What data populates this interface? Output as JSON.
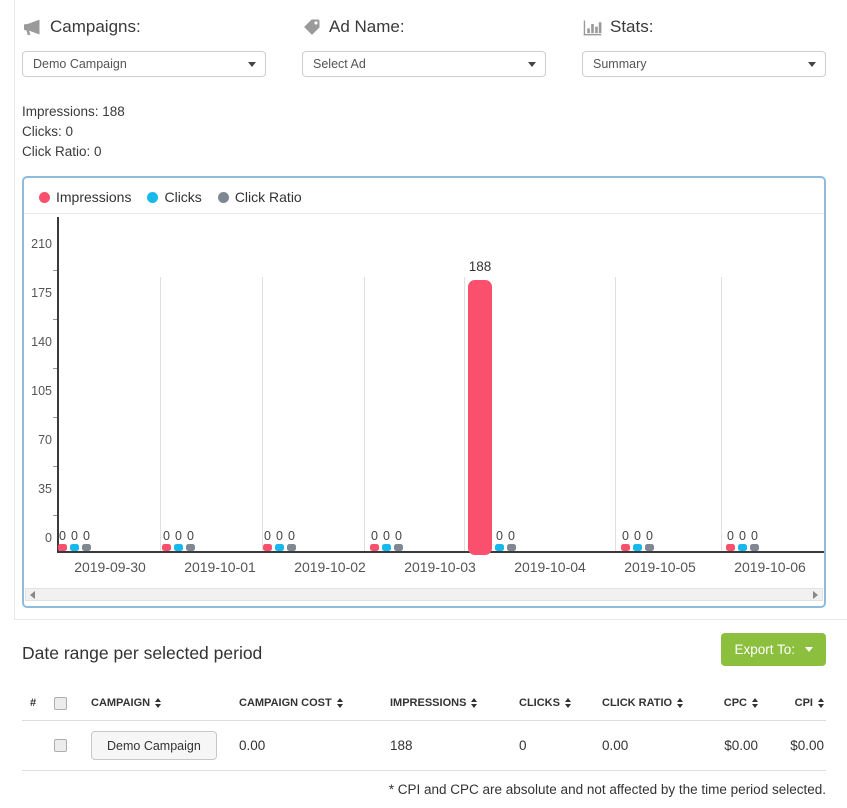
{
  "accent": {
    "panel_border": "#8FBCDE",
    "grid_color": "#E0E0E0",
    "axis_color": "#3A3A3A",
    "export_green": "#8CBF3E"
  },
  "controls": {
    "campaigns": {
      "label": "Campaigns:",
      "value": "Demo Campaign",
      "icon": "megaphone-icon"
    },
    "ad_name": {
      "label": "Ad Name:",
      "value": "Select Ad",
      "icon": "tag-icon"
    },
    "stats": {
      "label": "Stats:",
      "value": "Summary",
      "icon": "bar-chart-icon"
    }
  },
  "summary": {
    "impressions": "Impressions: 188",
    "clicks": "Clicks: 0",
    "click_ratio": "Click Ratio: 0"
  },
  "chart_data": {
    "type": "bar",
    "title": "",
    "xlabel": "",
    "ylabel": "",
    "categories": [
      "2019-09-30",
      "2019-10-01",
      "2019-10-02",
      "2019-10-03",
      "2019-10-04",
      "2019-10-05",
      "2019-10-06"
    ],
    "series": [
      {
        "name": "Impressions",
        "color": "#FA506E",
        "values": [
          0,
          0,
          0,
          0,
          188,
          0,
          0
        ]
      },
      {
        "name": "Clicks",
        "color": "#17B9EC",
        "values": [
          0,
          0,
          0,
          0,
          0,
          0,
          0
        ]
      },
      {
        "name": "Click Ratio",
        "color": "#7E8792",
        "values": [
          0,
          0,
          0,
          0,
          0,
          0,
          0
        ]
      }
    ],
    "yticks": [
      0,
      35,
      70,
      105,
      140,
      175,
      210
    ],
    "ylim": [
      0,
      210
    ],
    "grid": "vertical",
    "legend_position": "top-left",
    "bar_value_labels": true,
    "max_bar_label": "188"
  },
  "table_section": {
    "heading": "Date range per selected period",
    "export_button": {
      "label": "Export To:",
      "color": "#8CBF3E",
      "icon": "caret-down-icon"
    },
    "table": {
      "columns": [
        {
          "label": "#",
          "sortable": false
        },
        {
          "label": "CAMPAIGN",
          "sortable": true
        },
        {
          "label": "CAMPAIGN COST",
          "sortable": true
        },
        {
          "label": "IMPRESSIONS",
          "sortable": true
        },
        {
          "label": "CLICKS",
          "sortable": true
        },
        {
          "label": "CLICK RATIO",
          "sortable": true
        },
        {
          "label": "CPC",
          "sortable": true
        },
        {
          "label": "CPI",
          "sortable": true
        }
      ],
      "rows": [
        {
          "campaign": "Demo Campaign",
          "campaign_cost": "0.00",
          "impressions": "188",
          "clicks": "0",
          "click_ratio": "0.00",
          "cpc": "$0.00",
          "cpi": "$0.00"
        }
      ]
    },
    "footnote": "* CPI and CPC are absolute and not affected by the time period selected."
  }
}
